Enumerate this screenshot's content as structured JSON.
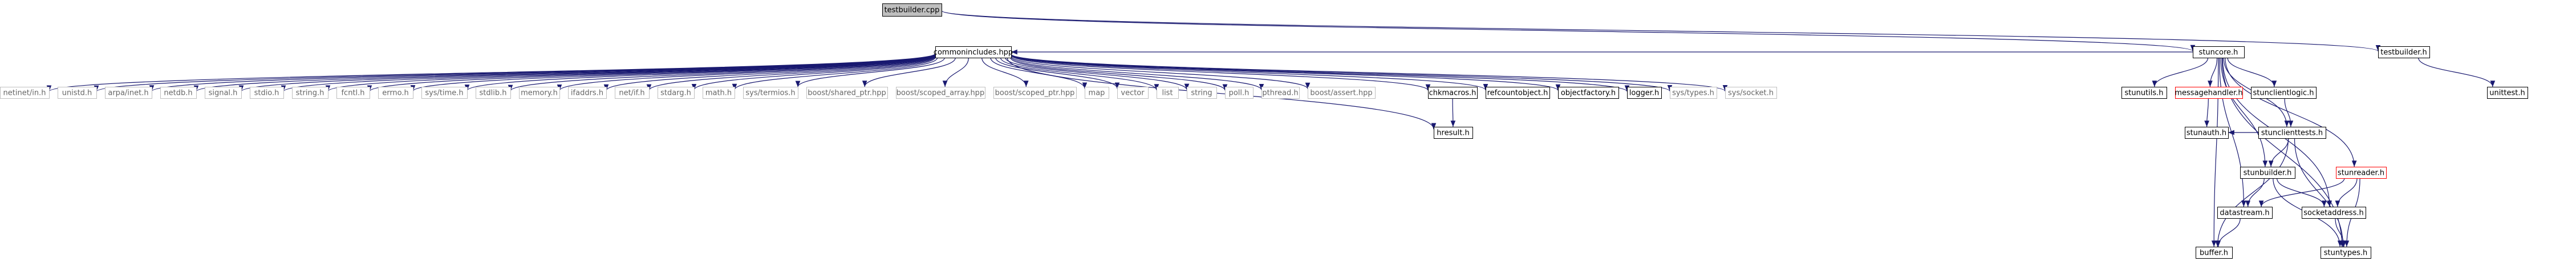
{
  "graph": {
    "edge_color": "#191970",
    "focus_fill": "#bfbfbf",
    "node_border_black": "#000000",
    "node_border_grey": "#bfbfbf",
    "node_border_red": "#ff0000",
    "text_dark": "#000000",
    "text_grey": "#666666",
    "nodes": [
      {
        "id": "testbuilder_cpp",
        "label": "testbuilder.cpp",
        "style": "focus"
      },
      {
        "id": "commonincludes_hpp",
        "label": "commonincludes.hpp",
        "style": "normal"
      },
      {
        "id": "netinet_in_h",
        "label": "netinet/in.h",
        "style": "grey"
      },
      {
        "id": "unistd_h",
        "label": "unistd.h",
        "style": "grey"
      },
      {
        "id": "arpa_inet_h",
        "label": "arpa/inet.h",
        "style": "grey"
      },
      {
        "id": "netdb_h",
        "label": "netdb.h",
        "style": "grey"
      },
      {
        "id": "signal_h",
        "label": "signal.h",
        "style": "grey"
      },
      {
        "id": "stdio_h",
        "label": "stdio.h",
        "style": "grey"
      },
      {
        "id": "string_h",
        "label": "string.h",
        "style": "grey"
      },
      {
        "id": "fcntl_h",
        "label": "fcntl.h",
        "style": "grey"
      },
      {
        "id": "errno_h",
        "label": "errno.h",
        "style": "grey"
      },
      {
        "id": "sys_time_h",
        "label": "sys/time.h",
        "style": "grey"
      },
      {
        "id": "stdlib_h",
        "label": "stdlib.h",
        "style": "grey"
      },
      {
        "id": "memory_h",
        "label": "memory.h",
        "style": "grey"
      },
      {
        "id": "ifaddrs_h",
        "label": "ifaddrs.h",
        "style": "grey"
      },
      {
        "id": "net_if_h",
        "label": "net/if.h",
        "style": "grey"
      },
      {
        "id": "stdarg_h",
        "label": "stdarg.h",
        "style": "grey"
      },
      {
        "id": "math_h",
        "label": "math.h",
        "style": "grey"
      },
      {
        "id": "sys_termios_h",
        "label": "sys/termios.h",
        "style": "grey"
      },
      {
        "id": "boost_shared_ptr",
        "label": "boost/shared_ptr.hpp",
        "style": "grey"
      },
      {
        "id": "boost_scoped_array",
        "label": "boost/scoped_array.hpp",
        "style": "grey"
      },
      {
        "id": "boost_scoped_ptr",
        "label": "boost/scoped_ptr.hpp",
        "style": "grey"
      },
      {
        "id": "map",
        "label": "map",
        "style": "grey"
      },
      {
        "id": "vector",
        "label": "vector",
        "style": "grey"
      },
      {
        "id": "list",
        "label": "list",
        "style": "grey"
      },
      {
        "id": "string",
        "label": "string",
        "style": "grey"
      },
      {
        "id": "poll_h",
        "label": "poll.h",
        "style": "grey"
      },
      {
        "id": "pthread_h",
        "label": "pthread.h",
        "style": "grey"
      },
      {
        "id": "boost_assert",
        "label": "boost/assert.hpp",
        "style": "grey"
      },
      {
        "id": "chkmacros_h",
        "label": "chkmacros.h",
        "style": "normal"
      },
      {
        "id": "refcountobject_h",
        "label": "refcountobject.h",
        "style": "normal"
      },
      {
        "id": "objectfactory_h",
        "label": "objectfactory.h",
        "style": "normal"
      },
      {
        "id": "logger_h",
        "label": "logger.h",
        "style": "normal"
      },
      {
        "id": "sys_types_h",
        "label": "sys/types.h",
        "style": "grey"
      },
      {
        "id": "sys_socket_h",
        "label": "sys/socket.h",
        "style": "grey"
      },
      {
        "id": "hresult_h",
        "label": "hresult.h",
        "style": "normal"
      },
      {
        "id": "stuncore_h",
        "label": "stuncore.h",
        "style": "normal"
      },
      {
        "id": "testbuilder_h",
        "label": "testbuilder.h",
        "style": "normal"
      },
      {
        "id": "unittest_h",
        "label": "unittest.h",
        "style": "normal"
      },
      {
        "id": "stunutils_h",
        "label": "stunutils.h",
        "style": "normal"
      },
      {
        "id": "messagehandler_h",
        "label": "messagehandler.h",
        "style": "red"
      },
      {
        "id": "stunclientlogic_h",
        "label": "stunclientlogic.h",
        "style": "normal"
      },
      {
        "id": "stunclienttests_h",
        "label": "stunclienttests.h",
        "style": "normal"
      },
      {
        "id": "stunauth_h",
        "label": "stunauth.h",
        "style": "normal"
      },
      {
        "id": "stunbuilder_h",
        "label": "stunbuilder.h",
        "style": "normal"
      },
      {
        "id": "stunreader_h",
        "label": "stunreader.h",
        "style": "red"
      },
      {
        "id": "socketaddress_h",
        "label": "socketaddress.h",
        "style": "normal"
      },
      {
        "id": "datastream_h",
        "label": "datastream.h",
        "style": "normal"
      },
      {
        "id": "buffer_h",
        "label": "buffer.h",
        "style": "normal"
      },
      {
        "id": "stuntypes_h",
        "label": "stuntypes.h",
        "style": "normal"
      }
    ],
    "edges": [
      [
        "testbuilder_cpp",
        "stuncore_h"
      ],
      [
        "testbuilder_cpp",
        "testbuilder_h"
      ],
      [
        "stuncore_h",
        "commonincludes_hpp"
      ],
      [
        "testbuilder_h",
        "unittest_h"
      ],
      [
        "commonincludes_hpp",
        "netinet_in_h"
      ],
      [
        "commonincludes_hpp",
        "unistd_h"
      ],
      [
        "commonincludes_hpp",
        "arpa_inet_h"
      ],
      [
        "commonincludes_hpp",
        "netdb_h"
      ],
      [
        "commonincludes_hpp",
        "signal_h"
      ],
      [
        "commonincludes_hpp",
        "stdio_h"
      ],
      [
        "commonincludes_hpp",
        "string_h"
      ],
      [
        "commonincludes_hpp",
        "fcntl_h"
      ],
      [
        "commonincludes_hpp",
        "errno_h"
      ],
      [
        "commonincludes_hpp",
        "sys_time_h"
      ],
      [
        "commonincludes_hpp",
        "stdlib_h"
      ],
      [
        "commonincludes_hpp",
        "memory_h"
      ],
      [
        "commonincludes_hpp",
        "ifaddrs_h"
      ],
      [
        "commonincludes_hpp",
        "net_if_h"
      ],
      [
        "commonincludes_hpp",
        "stdarg_h"
      ],
      [
        "commonincludes_hpp",
        "math_h"
      ],
      [
        "commonincludes_hpp",
        "sys_termios_h"
      ],
      [
        "commonincludes_hpp",
        "boost_shared_ptr"
      ],
      [
        "commonincludes_hpp",
        "boost_scoped_array"
      ],
      [
        "commonincludes_hpp",
        "boost_scoped_ptr"
      ],
      [
        "commonincludes_hpp",
        "map"
      ],
      [
        "commonincludes_hpp",
        "vector"
      ],
      [
        "commonincludes_hpp",
        "list"
      ],
      [
        "commonincludes_hpp",
        "string"
      ],
      [
        "commonincludes_hpp",
        "poll_h"
      ],
      [
        "commonincludes_hpp",
        "pthread_h"
      ],
      [
        "commonincludes_hpp",
        "boost_assert"
      ],
      [
        "commonincludes_hpp",
        "chkmacros_h"
      ],
      [
        "commonincludes_hpp",
        "refcountobject_h"
      ],
      [
        "commonincludes_hpp",
        "objectfactory_h"
      ],
      [
        "commonincludes_hpp",
        "logger_h"
      ],
      [
        "commonincludes_hpp",
        "sys_types_h"
      ],
      [
        "commonincludes_hpp",
        "sys_socket_h"
      ],
      [
        "commonincludes_hpp",
        "hresult_h"
      ],
      [
        "chkmacros_h",
        "hresult_h"
      ],
      [
        "stuncore_h",
        "stunutils_h"
      ],
      [
        "stuncore_h",
        "messagehandler_h"
      ],
      [
        "stuncore_h",
        "stunclientlogic_h"
      ],
      [
        "stuncore_h",
        "stunclienttests_h"
      ],
      [
        "stuncore_h",
        "stunbuilder_h"
      ],
      [
        "stuncore_h",
        "stunreader_h"
      ],
      [
        "stuncore_h",
        "socketaddress_h"
      ],
      [
        "stuncore_h",
        "datastream_h"
      ],
      [
        "stuncore_h",
        "buffer_h"
      ],
      [
        "stuncore_h",
        "stuntypes_h"
      ],
      [
        "messagehandler_h",
        "stunauth_h"
      ],
      [
        "stunclientlogic_h",
        "stunclienttests_h"
      ],
      [
        "stunclienttests_h",
        "stunauth_h"
      ],
      [
        "stunclienttests_h",
        "stunbuilder_h"
      ],
      [
        "stunclienttests_h",
        "buffer_h"
      ],
      [
        "stunclienttests_h",
        "stuntypes_h"
      ],
      [
        "stunbuilder_h",
        "socketaddress_h"
      ],
      [
        "stunbuilder_h",
        "datastream_h"
      ],
      [
        "stunbuilder_h",
        "stuntypes_h"
      ],
      [
        "stunreader_h",
        "socketaddress_h"
      ],
      [
        "stunreader_h",
        "datastream_h"
      ],
      [
        "stunreader_h",
        "stuntypes_h"
      ],
      [
        "socketaddress_h",
        "stuntypes_h"
      ],
      [
        "datastream_h",
        "buffer_h"
      ]
    ]
  }
}
